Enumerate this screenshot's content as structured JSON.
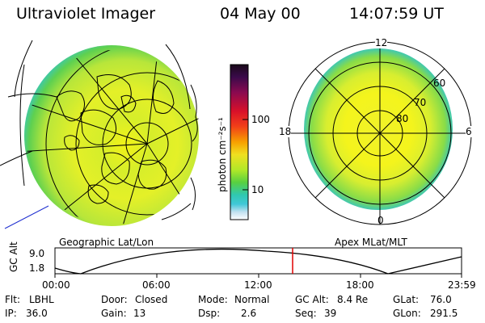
{
  "header": {
    "title": "Ultraviolet Imager",
    "date": "04 May 00",
    "time": "14:07:59 UT"
  },
  "colorbar": {
    "unit_label": "photon cm⁻²s⁻¹",
    "ticks": [
      "100",
      "10"
    ],
    "colors": [
      "#1a0a1a",
      "#3a0a4a",
      "#8a0a50",
      "#d8102a",
      "#f24018",
      "#f7a000",
      "#f0e020",
      "#b0e828",
      "#58d040",
      "#30c8b0",
      "#40c8d8",
      "#c0e0f0",
      "#ffffff"
    ]
  },
  "geo_panel": {
    "caption": "Geographic Lat/Lon"
  },
  "mag_panel": {
    "caption": "Apex MLat/MLT",
    "mlt_labels": [
      "12",
      "18",
      "6",
      "0"
    ],
    "lat_labels": [
      "60",
      "70",
      "80"
    ]
  },
  "altitude_plot": {
    "ylabel": "GC Alt",
    "y_ticks": [
      "9.0",
      "1.8"
    ],
    "x_ticks": [
      "00:00",
      "06:00",
      "12:00",
      "18:00",
      "23:59"
    ],
    "marker_color": "#e00000"
  },
  "status": {
    "filter_label": "Flt:",
    "filter_value": "LBHL",
    "ip_label": "IP:",
    "ip_value": "36.0",
    "door_label": "Door:",
    "door_value": "Closed",
    "gain_label": "Gain:",
    "gain_value": "13",
    "mode_label": "Mode:",
    "mode_value": "Normal",
    "dsp_label": "Dsp:",
    "dsp_value": "2.6",
    "gcalt_label": "GC Alt:",
    "gcalt_value": "8.4 Re",
    "seq_label": "Seq:",
    "seq_value": "39",
    "glat_label": "GLat:",
    "glat_value": "76.0",
    "glon_label": "GLon:",
    "glon_value": "291.5"
  }
}
